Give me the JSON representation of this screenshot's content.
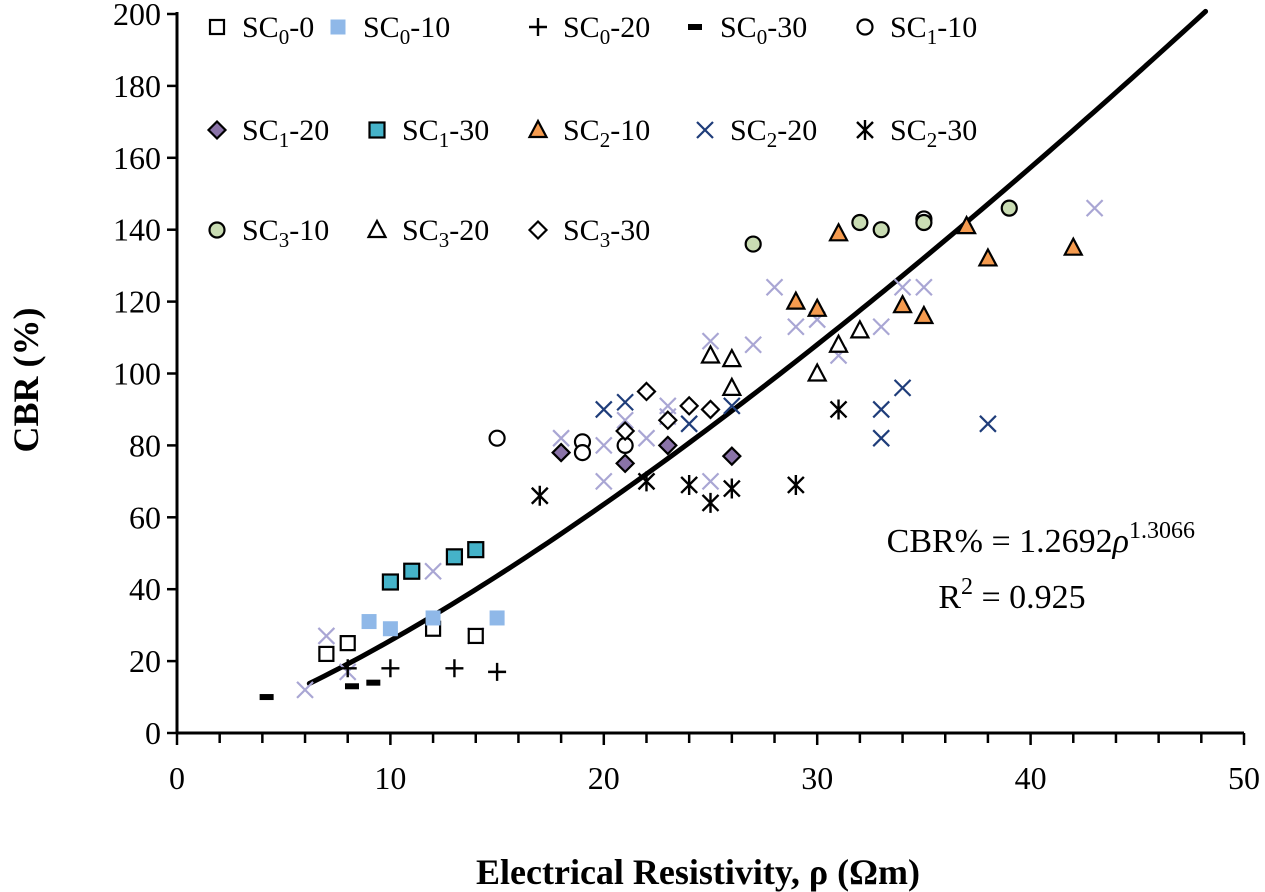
{
  "chart_data": {
    "type": "scatter",
    "title": "",
    "xlabel": "Electrical Resistivity, ρ (Ωm)",
    "ylabel": "CBR (%)",
    "xlim": [
      0,
      50
    ],
    "ylim": [
      0,
      200
    ],
    "x_ticks": [
      0,
      10,
      20,
      30,
      40,
      50
    ],
    "y_ticks": [
      0,
      20,
      40,
      60,
      80,
      100,
      120,
      140,
      160,
      180,
      200
    ],
    "x_minor_step": 2,
    "grid": false,
    "legend_position": "top-left",
    "series": [
      {
        "name": "SC0-0",
        "base": "SC",
        "sub": "0",
        "suffix": "-0",
        "marker": "square-open",
        "color": "#000000",
        "fill": "#ffffff",
        "points": [
          [
            7,
            22
          ],
          [
            8,
            25
          ],
          [
            12,
            29
          ],
          [
            14,
            27
          ]
        ]
      },
      {
        "name": "SC0-10",
        "base": "SC",
        "sub": "0",
        "suffix": "-10",
        "marker": "square-filled",
        "color": "#8fb8e8",
        "fill": "#8fb8e8",
        "points": [
          [
            9,
            31
          ],
          [
            10,
            29
          ],
          [
            12,
            32
          ],
          [
            15,
            32
          ]
        ]
      },
      {
        "name": "SC0-20",
        "base": "SC",
        "sub": "0",
        "suffix": "-20",
        "marker": "plus",
        "color": "#000000",
        "fill": "none",
        "points": [
          [
            8,
            18
          ],
          [
            10,
            18
          ],
          [
            13,
            18
          ],
          [
            15,
            17
          ]
        ]
      },
      {
        "name": "SC0-30",
        "base": "SC",
        "sub": "0",
        "suffix": "-30",
        "marker": "dash",
        "color": "#000000",
        "fill": "none",
        "points": [
          [
            4.2,
            10
          ],
          [
            8.2,
            13
          ],
          [
            9.2,
            14
          ]
        ]
      },
      {
        "name": "SC1-10",
        "base": "SC",
        "sub": "1",
        "suffix": "-10",
        "marker": "circle-open",
        "color": "#000000",
        "fill": "#ffffff",
        "points": [
          [
            15,
            82
          ],
          [
            19,
            81
          ],
          [
            19,
            78
          ],
          [
            21,
            80
          ],
          [
            35,
            143
          ]
        ]
      },
      {
        "name": "SC1-20",
        "base": "SC",
        "sub": "1",
        "suffix": "-20",
        "marker": "diamond-filled",
        "color": "#000000",
        "fill": "#8a73a8",
        "points": [
          [
            18,
            78
          ],
          [
            21,
            75
          ],
          [
            23,
            80
          ],
          [
            26,
            77
          ]
        ]
      },
      {
        "name": "SC1-30",
        "base": "SC",
        "sub": "1",
        "suffix": "-30",
        "marker": "square-filled",
        "color": "#000000",
        "fill": "#45b3c9",
        "points": [
          [
            10,
            42
          ],
          [
            11,
            45
          ],
          [
            13,
            49
          ],
          [
            14,
            51
          ]
        ]
      },
      {
        "name": "SC2-10",
        "base": "SC",
        "sub": "2",
        "suffix": "-10",
        "marker": "triangle-filled",
        "color": "#000000",
        "fill": "#f59b4f",
        "points": [
          [
            29,
            120
          ],
          [
            30,
            118
          ],
          [
            31,
            139
          ],
          [
            34,
            119
          ],
          [
            35,
            116
          ],
          [
            37,
            141
          ],
          [
            38,
            132
          ],
          [
            42,
            135
          ]
        ]
      },
      {
        "name": "SC2-20",
        "base": "SC",
        "sub": "2",
        "suffix": "-20",
        "marker": "x",
        "color": "#1f3d7a",
        "fill": "none",
        "points": [
          [
            20,
            90
          ],
          [
            21,
            92
          ],
          [
            24,
            86
          ],
          [
            26,
            91
          ],
          [
            33,
            82
          ],
          [
            33,
            90
          ],
          [
            34,
            96
          ],
          [
            38,
            86
          ]
        ]
      },
      {
        "name": "SC2-30",
        "base": "SC",
        "sub": "2",
        "suffix": "-30",
        "marker": "asterisk",
        "color": "#000000",
        "fill": "none",
        "points": [
          [
            17,
            66
          ],
          [
            22,
            70
          ],
          [
            24,
            69
          ],
          [
            25,
            64
          ],
          [
            26,
            68
          ],
          [
            29,
            69
          ],
          [
            31,
            90
          ]
        ]
      },
      {
        "name": "SC3-10",
        "base": "SC",
        "sub": "3",
        "suffix": "-10",
        "marker": "circle-filled",
        "color": "#000000",
        "fill": "#c9dcb3",
        "points": [
          [
            27,
            136
          ],
          [
            32,
            142
          ],
          [
            33,
            140
          ],
          [
            35,
            142
          ],
          [
            39,
            146
          ]
        ]
      },
      {
        "name": "SC3-20",
        "base": "SC",
        "sub": "3",
        "suffix": "-20",
        "marker": "triangle-open",
        "color": "#000000",
        "fill": "#ffffff",
        "points": [
          [
            25,
            105
          ],
          [
            26,
            104
          ],
          [
            26,
            96
          ],
          [
            30,
            100
          ],
          [
            31,
            108
          ],
          [
            32,
            112
          ]
        ]
      },
      {
        "name": "SC3-30",
        "base": "SC",
        "sub": "3",
        "suffix": "-30",
        "marker": "diamond-open",
        "color": "#000000",
        "fill": "#ffffff",
        "points": [
          [
            21,
            84
          ],
          [
            22,
            95
          ],
          [
            23,
            87
          ],
          [
            24,
            91
          ],
          [
            25,
            90
          ]
        ]
      },
      {
        "name": "background",
        "base": "",
        "sub": "",
        "suffix": "",
        "marker": "x",
        "color": "#a9a6d4",
        "fill": "none",
        "in_legend": false,
        "points": [
          [
            6,
            12
          ],
          [
            7,
            27
          ],
          [
            8,
            17
          ],
          [
            12,
            45
          ],
          [
            14,
            27
          ],
          [
            18,
            82
          ],
          [
            20,
            70
          ],
          [
            20,
            80
          ],
          [
            21,
            87
          ],
          [
            22,
            82
          ],
          [
            23,
            91
          ],
          [
            23,
            88
          ],
          [
            25,
            109
          ],
          [
            25,
            70
          ],
          [
            27,
            108
          ],
          [
            28,
            124
          ],
          [
            29,
            113
          ],
          [
            30,
            115
          ],
          [
            31,
            105
          ],
          [
            33,
            113
          ],
          [
            34,
            124
          ],
          [
            35,
            124
          ],
          [
            43,
            146
          ]
        ]
      }
    ],
    "fit": {
      "label": "CBR% = 1.2692ρ^1.3066",
      "coefficient": 1.2692,
      "exponent": 1.3066,
      "x_range": [
        6.2,
        48.2
      ],
      "r2": 0.925
    },
    "annotations": {
      "eq_prefix": "CBR% = 1.2692",
      "eq_var": "ρ",
      "eq_exp": "1.3066",
      "r2_base": "R",
      "r2_sup": "2",
      "r2_rest": " = 0.925"
    }
  }
}
